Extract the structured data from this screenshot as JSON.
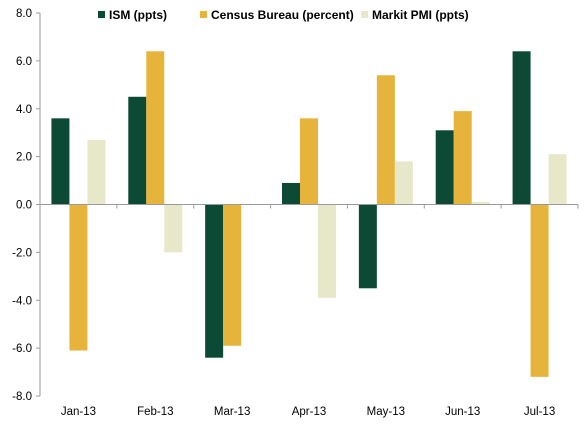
{
  "chart_data": {
    "type": "bar",
    "title": "",
    "xlabel": "",
    "ylabel": "",
    "ylim": [
      -8,
      8
    ],
    "yticks": [
      8,
      6,
      4,
      2,
      0,
      -2,
      -4,
      -6,
      -8
    ],
    "ytick_labels": [
      "8.0",
      "6.0",
      "4.0",
      "2.0",
      "0.0",
      "-2.0",
      "-4.0",
      "-6.0",
      "-8.0"
    ],
    "grid": false,
    "legend_position": "top",
    "categories": [
      "Jan-13",
      "Feb-13",
      "Mar-13",
      "Apr-13",
      "May-13",
      "Jun-13",
      "Jul-13"
    ],
    "series": [
      {
        "name": "ISM (ppts)",
        "color": "#0d4a35",
        "values": [
          3.6,
          4.5,
          -6.4,
          0.9,
          -3.5,
          3.1,
          6.4
        ]
      },
      {
        "name": "Census Bureau (percent)",
        "color": "#e6b43a",
        "values": [
          -6.1,
          6.4,
          -5.9,
          3.6,
          5.4,
          3.9,
          -7.2
        ]
      },
      {
        "name": "Markit PMI (ppts)",
        "color": "#e6e8c9",
        "values": [
          2.7,
          -2.0,
          0.0,
          -3.9,
          1.8,
          0.1,
          2.1
        ]
      }
    ]
  }
}
